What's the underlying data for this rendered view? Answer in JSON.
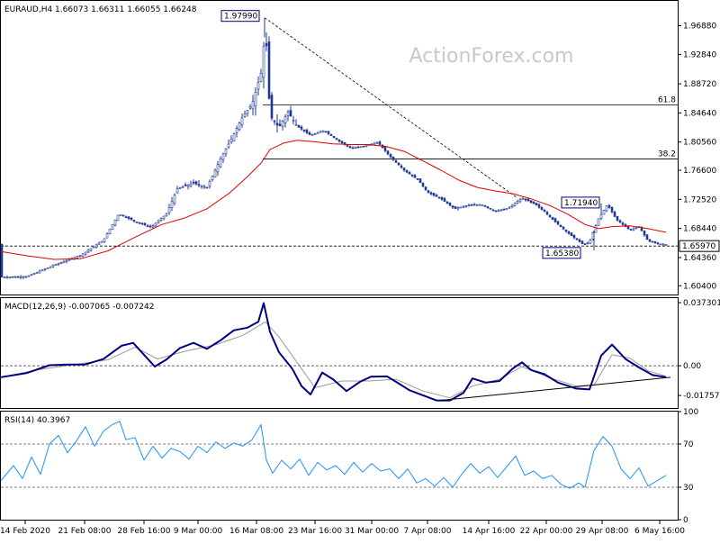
{
  "chart_data": [
    {
      "id": "price",
      "type": "candlestick",
      "title": "EURAUD,H4 1.66073 1.66311 1.66055 1.66248",
      "watermark": "ActionForex.com",
      "ylim": [
        1.5917,
        2.0035
      ],
      "y_ticks": [
        "1.96880",
        "1.92840",
        "1.88720",
        "1.84640",
        "1.80560",
        "1.76600",
        "1.72520",
        "1.68440",
        "1.64360",
        "1.60400"
      ],
      "x_ticks": [
        "14 Feb 2020",
        "21 Feb 08:00",
        "28 Feb 16:00",
        "9 Mar 00:00",
        "16 Mar 08:00",
        "23 Mar 16:00",
        "31 Mar 00:00",
        "7 Apr 08:00",
        "14 Apr 16:00",
        "22 Apr 00:00",
        "29 Apr 08:00",
        "6 May 16:00"
      ],
      "current_price": {
        "value": 1.6597,
        "label": "1.65970",
        "color": "#000000"
      },
      "series": [
        {
          "style": "candles",
          "color": "#1f3a93",
          "points": [
            [
              1,
              1.616
            ],
            [
              30,
              1.617
            ],
            [
              60,
              1.633
            ],
            [
              90,
              1.647
            ],
            [
              115,
              1.668
            ],
            [
              132,
              1.705
            ],
            [
              150,
              1.694
            ],
            [
              168,
              1.686
            ],
            [
              185,
              1.705
            ],
            [
              197,
              1.74
            ],
            [
              215,
              1.748
            ],
            [
              230,
              1.742
            ],
            [
              245,
              1.782
            ],
            [
              258,
              1.812
            ],
            [
              270,
              1.842
            ],
            [
              280,
              1.858
            ],
            [
              290,
              1.902
            ],
            [
              295,
              1.965
            ],
            [
              300,
              1.842
            ],
            [
              310,
              1.826
            ],
            [
              320,
              1.848
            ],
            [
              330,
              1.828
            ],
            [
              345,
              1.815
            ],
            [
              360,
              1.822
            ],
            [
              375,
              1.808
            ],
            [
              390,
              1.797
            ],
            [
              405,
              1.8
            ],
            [
              420,
              1.805
            ],
            [
              435,
              1.783
            ],
            [
              450,
              1.765
            ],
            [
              465,
              1.752
            ],
            [
              475,
              1.735
            ],
            [
              490,
              1.726
            ],
            [
              505,
              1.712
            ],
            [
              520,
              1.717
            ],
            [
              535,
              1.718
            ],
            [
              550,
              1.708
            ],
            [
              565,
              1.713
            ],
            [
              580,
              1.727
            ],
            [
              595,
              1.718
            ],
            [
              605,
              1.708
            ],
            [
              620,
              1.69
            ],
            [
              635,
              1.674
            ],
            [
              648,
              1.662
            ],
            [
              655,
              1.665
            ],
            [
              665,
              1.698
            ],
            [
              675,
              1.718
            ],
            [
              685,
              1.697
            ],
            [
              700,
              1.682
            ],
            [
              710,
              1.687
            ],
            [
              720,
              1.667
            ],
            [
              730,
              1.663
            ],
            [
              740,
              1.662
            ]
          ]
        },
        {
          "style": "line",
          "name": "MA",
          "color": "#dd0000",
          "points": [
            [
              1,
              1.652
            ],
            [
              30,
              1.646
            ],
            [
              60,
              1.641
            ],
            [
              90,
              1.642
            ],
            [
              120,
              1.653
            ],
            [
              150,
              1.672
            ],
            [
              180,
              1.69
            ],
            [
              205,
              1.699
            ],
            [
              230,
              1.712
            ],
            [
              255,
              1.734
            ],
            [
              275,
              1.757
            ],
            [
              290,
              1.776
            ],
            [
              300,
              1.795
            ],
            [
              315,
              1.804
            ],
            [
              330,
              1.808
            ],
            [
              350,
              1.806
            ],
            [
              370,
              1.803
            ],
            [
              390,
              1.802
            ],
            [
              410,
              1.802
            ],
            [
              430,
              1.799
            ],
            [
              450,
              1.792
            ],
            [
              470,
              1.779
            ],
            [
              490,
              1.766
            ],
            [
              510,
              1.752
            ],
            [
              530,
              1.742
            ],
            [
              550,
              1.737
            ],
            [
              570,
              1.733
            ],
            [
              590,
              1.726
            ],
            [
              610,
              1.717
            ],
            [
              630,
              1.705
            ],
            [
              650,
              1.69
            ],
            [
              665,
              1.684
            ],
            [
              680,
              1.687
            ],
            [
              700,
              1.688
            ],
            [
              720,
              1.684
            ],
            [
              740,
              1.679
            ]
          ]
        }
      ],
      "annotations": [
        {
          "label": "1.97990",
          "value": 1.9799,
          "x": 294
        },
        {
          "label": "1.71940",
          "value": 1.7194,
          "x": 668
        },
        {
          "label": "1.65380",
          "value": 1.6538,
          "x": 660
        }
      ],
      "fib_levels": [
        {
          "label": "61.8",
          "value": 1.8574
        },
        {
          "label": "38.2",
          "value": 1.7819
        }
      ],
      "trendline": {
        "from": [
          1.9799,
          294
        ],
        "to": [
          1.727,
          575
        ]
      }
    },
    {
      "id": "macd",
      "type": "line",
      "title": "MACD(12,26,9) -0.007065 -0.007242",
      "ylim": [
        -0.025,
        0.04
      ],
      "y_ticks": [
        "0.037301",
        "0.00",
        "-0.017577"
      ],
      "zero_label": "0.00",
      "series": [
        {
          "name": "MACD",
          "color": "#000080",
          "points": [
            [
              1,
              -0.0068
            ],
            [
              30,
              -0.0043
            ],
            [
              55,
              0.0003
            ],
            [
              75,
              0.0007
            ],
            [
              95,
              0.0008
            ],
            [
              115,
              0.004
            ],
            [
              135,
              0.0118
            ],
            [
              148,
              0.0135
            ],
            [
              160,
              0.0065
            ],
            [
              172,
              -0.0005
            ],
            [
              185,
              0.0037
            ],
            [
              200,
              0.0105
            ],
            [
              215,
              0.0135
            ],
            [
              230,
              0.01
            ],
            [
              245,
              0.015
            ],
            [
              260,
              0.021
            ],
            [
              275,
              0.0225
            ],
            [
              287,
              0.026
            ],
            [
              293,
              0.037
            ],
            [
              300,
              0.02
            ],
            [
              310,
              0.008
            ],
            [
              325,
              -0.002
            ],
            [
              335,
              -0.012
            ],
            [
              345,
              -0.017
            ],
            [
              358,
              -0.004
            ],
            [
              370,
              -0.008
            ],
            [
              385,
              -0.015
            ],
            [
              400,
              -0.0095
            ],
            [
              412,
              -0.0065
            ],
            [
              430,
              -0.0063
            ],
            [
              440,
              -0.0095
            ],
            [
              455,
              -0.0145
            ],
            [
              470,
              -0.0175
            ],
            [
              485,
              -0.0205
            ],
            [
              500,
              -0.0205
            ],
            [
              515,
              -0.016
            ],
            [
              525,
              -0.0075
            ],
            [
              540,
              -0.01
            ],
            [
              555,
              -0.009
            ],
            [
              570,
              -0.0015
            ],
            [
              580,
              0.002
            ],
            [
              590,
              -0.0025
            ],
            [
              605,
              -0.005
            ],
            [
              620,
              -0.01
            ],
            [
              640,
              -0.0135
            ],
            [
              655,
              -0.014
            ],
            [
              668,
              0.006
            ],
            [
              680,
              0.0125
            ],
            [
              695,
              0.004
            ],
            [
              710,
              -0.001
            ],
            [
              725,
              -0.0055
            ],
            [
              740,
              -0.0068
            ]
          ]
        },
        {
          "name": "Signal",
          "color": "#999999",
          "points": [
            [
              1,
              -0.007
            ],
            [
              40,
              -0.0025
            ],
            [
              80,
              0.0005
            ],
            [
              120,
              0.0035
            ],
            [
              150,
              0.011
            ],
            [
              175,
              0.004
            ],
            [
              205,
              0.0085
            ],
            [
              240,
              0.0125
            ],
            [
              270,
              0.018
            ],
            [
              295,
              0.026
            ],
            [
              310,
              0.017
            ],
            [
              330,
              0.002
            ],
            [
              350,
              -0.013
            ],
            [
              380,
              -0.009
            ],
            [
              410,
              -0.009
            ],
            [
              440,
              -0.008
            ],
            [
              470,
              -0.015
            ],
            [
              500,
              -0.019
            ],
            [
              525,
              -0.012
            ],
            [
              555,
              -0.008
            ],
            [
              580,
              -0.0005
            ],
            [
              610,
              -0.007
            ],
            [
              640,
              -0.012
            ],
            [
              660,
              -0.0115
            ],
            [
              680,
              0.0065
            ],
            [
              700,
              0.0045
            ],
            [
              720,
              -0.003
            ],
            [
              740,
              -0.0062
            ]
          ]
        }
      ],
      "trendline": {
        "from": [
          -0.0205,
          490
        ],
        "to": [
          -0.0068,
          745
        ]
      }
    },
    {
      "id": "rsi",
      "type": "line",
      "title": "RSI(14) 40.3967",
      "ylim": [
        0,
        100
      ],
      "y_ticks": [
        "100",
        "70",
        "30",
        "0"
      ],
      "levels": [
        70,
        30
      ],
      "series": [
        {
          "name": "RSI",
          "color": "#1e90ff",
          "points": [
            [
              1,
              36
            ],
            [
              15,
              50
            ],
            [
              25,
              38
            ],
            [
              35,
              58
            ],
            [
              45,
              42
            ],
            [
              55,
              70
            ],
            [
              65,
              78
            ],
            [
              75,
              62
            ],
            [
              85,
              73
            ],
            [
              95,
              86
            ],
            [
              105,
              68
            ],
            [
              115,
              82
            ],
            [
              125,
              88
            ],
            [
              133,
              91
            ],
            [
              140,
              74
            ],
            [
              150,
              76
            ],
            [
              160,
              55
            ],
            [
              170,
              68
            ],
            [
              180,
              57
            ],
            [
              190,
              66
            ],
            [
              200,
              63
            ],
            [
              210,
              56
            ],
            [
              220,
              68
            ],
            [
              230,
              62
            ],
            [
              240,
              72
            ],
            [
              250,
              66
            ],
            [
              260,
              71
            ],
            [
              270,
              68
            ],
            [
              280,
              74
            ],
            [
              290,
              88
            ],
            [
              296,
              55
            ],
            [
              303,
              43
            ],
            [
              313,
              55
            ],
            [
              323,
              47
            ],
            [
              333,
              56
            ],
            [
              343,
              41
            ],
            [
              353,
              53
            ],
            [
              363,
              46
            ],
            [
              373,
              50
            ],
            [
              383,
              42
            ],
            [
              393,
              53
            ],
            [
              403,
              44
            ],
            [
              413,
              52
            ],
            [
              423,
              45
            ],
            [
              433,
              47
            ],
            [
              443,
              38
            ],
            [
              453,
              47
            ],
            [
              463,
              34
            ],
            [
              473,
              38
            ],
            [
              483,
              31
            ],
            [
              493,
              39
            ],
            [
              503,
              30
            ],
            [
              513,
              42
            ],
            [
              523,
              52
            ],
            [
              533,
              43
            ],
            [
              543,
              49
            ],
            [
              553,
              39
            ],
            [
              563,
              49
            ],
            [
              573,
              59
            ],
            [
              583,
              41
            ],
            [
              593,
              45
            ],
            [
              603,
              38
            ],
            [
              613,
              41
            ],
            [
              623,
              33
            ],
            [
              633,
              29
            ],
            [
              643,
              34
            ],
            [
              650,
              30
            ],
            [
              660,
              64
            ],
            [
              670,
              77
            ],
            [
              680,
              68
            ],
            [
              690,
              47
            ],
            [
              700,
              38
            ],
            [
              710,
              48
            ],
            [
              720,
              31
            ],
            [
              730,
              36
            ],
            [
              740,
              41
            ]
          ]
        }
      ]
    }
  ]
}
